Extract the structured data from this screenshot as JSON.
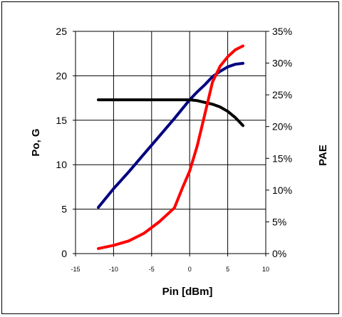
{
  "chart_data": {
    "type": "line",
    "title": "",
    "xlabel": "Pin [dBm]",
    "ylabel_left": "Po, G",
    "ylabel_right": "PAE",
    "xlim": [
      -15,
      10
    ],
    "ylim_left": [
      0,
      25
    ],
    "ylim_right": [
      0,
      35
    ],
    "x_ticks": [
      "-15",
      "-10",
      "-5",
      "0",
      "5",
      "10"
    ],
    "y_left_ticks": [
      "0",
      "5",
      "10",
      "15",
      "20",
      "25"
    ],
    "y_right_ticks": [
      "0%",
      "5%",
      "10%",
      "15%",
      "20%",
      "25%",
      "30%",
      "35%"
    ],
    "grid": true,
    "legend": "none",
    "series": [
      {
        "color": "#000080",
        "axis": "left",
        "x": [
          -12,
          -10,
          -8,
          -6,
          -4,
          -2,
          0,
          1,
          2,
          3,
          4,
          5,
          6,
          7
        ],
        "y": [
          5.2,
          7.3,
          9.2,
          11.2,
          13.2,
          15.2,
          17.3,
          18.2,
          19.0,
          19.9,
          20.5,
          21.0,
          21.3,
          21.4
        ]
      },
      {
        "color": "#000000",
        "axis": "left",
        "x": [
          -12,
          -10,
          -8,
          -6,
          -4,
          -2,
          0,
          1,
          2,
          3,
          4,
          5,
          6,
          7
        ],
        "y": [
          17.3,
          17.3,
          17.3,
          17.3,
          17.3,
          17.3,
          17.3,
          17.2,
          17.0,
          16.8,
          16.5,
          16.0,
          15.3,
          14.4
        ]
      },
      {
        "color": "#ff0000",
        "axis": "right",
        "x": [
          -12,
          -10,
          -8,
          -6,
          -4,
          -2,
          -1,
          0,
          1,
          2,
          3,
          4,
          5,
          6,
          7
        ],
        "y": [
          0.8,
          1.3,
          2.0,
          3.2,
          5.0,
          7.2,
          10.2,
          13.0,
          17.0,
          22.0,
          27.0,
          29.5,
          31.0,
          32.1,
          32.7
        ]
      }
    ]
  }
}
